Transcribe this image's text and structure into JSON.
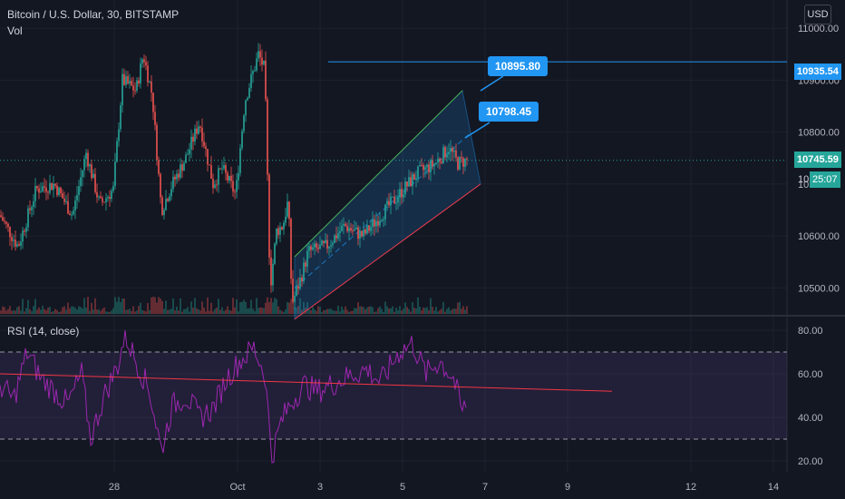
{
  "header": {
    "symbol": "Bitcoin / U.S. Dollar, 30, BITSTAMP",
    "volume_label": "Vol",
    "currency_button": "USD"
  },
  "rsi_header": "RSI (14, close)",
  "price_tags": {
    "hline_price": "10935.54",
    "last_price": "10745.59",
    "last_price_partial": "10",
    "countdown": "25:07"
  },
  "callouts": [
    {
      "text": "10895.80"
    },
    {
      "text": "10798.45"
    }
  ],
  "colors": {
    "background": "#131722",
    "up": "#26a69a",
    "down": "#ef5350",
    "accent_blue": "#2196f3",
    "channel_top": "#4caf50",
    "channel_bottom": "#f23645",
    "rsi_line": "#9c27b0",
    "rsi_trend": "#f23645",
    "grid": "#1e222d"
  },
  "chart_data": [
    {
      "type": "candlestick",
      "title": "Bitcoin / U.S. Dollar, 30, BITSTAMP",
      "y_axis_ticks": [
        "11000.00",
        "10900.00",
        "10800.00",
        "10700.00",
        "10600.00",
        "10500.00"
      ],
      "ylim": [
        10450,
        11030
      ],
      "x_axis_ticks": [
        "28",
        "Oct",
        "3",
        "5",
        "7",
        "9",
        "12",
        "14"
      ],
      "approx_path": [
        [
          0,
          10640
        ],
        [
          20,
          10580
        ],
        [
          40,
          10690
        ],
        [
          60,
          10700
        ],
        [
          80,
          10640
        ],
        [
          95,
          10760
        ],
        [
          110,
          10660
        ],
        [
          125,
          10690
        ],
        [
          135,
          10900
        ],
        [
          150,
          10880
        ],
        [
          158,
          10950
        ],
        [
          168,
          10870
        ],
        [
          178,
          10650
        ],
        [
          190,
          10700
        ],
        [
          205,
          10750
        ],
        [
          220,
          10820
        ],
        [
          235,
          10700
        ],
        [
          245,
          10730
        ],
        [
          260,
          10680
        ],
        [
          270,
          10860
        ],
        [
          285,
          10950
        ],
        [
          292,
          10920
        ],
        [
          298,
          10500
        ],
        [
          305,
          10610
        ],
        [
          312,
          10620
        ],
        [
          318,
          10670
        ],
        [
          322,
          10470
        ],
        [
          332,
          10520
        ],
        [
          340,
          10570
        ],
        [
          360,
          10580
        ],
        [
          380,
          10620
        ],
        [
          400,
          10600
        ],
        [
          420,
          10640
        ],
        [
          440,
          10680
        ],
        [
          460,
          10720
        ],
        [
          480,
          10740
        ],
        [
          495,
          10770
        ],
        [
          505,
          10740
        ],
        [
          515,
          10746
        ]
      ],
      "horizontal_line": 10935.54,
      "last_price": 10745.59,
      "parallel_channel": {
        "upper": [
          [
            325,
            10560
          ],
          [
            510,
            10880
          ]
        ],
        "middle": [
          [
            325,
            10500
          ],
          [
            520,
            10800
          ]
        ],
        "lower": [
          [
            325,
            10440
          ],
          [
            530,
            10700
          ]
        ]
      },
      "callout_values": [
        10895.8,
        10798.45
      ]
    },
    {
      "type": "line",
      "title": "RSI (14, close)",
      "y_axis_ticks": [
        "80.00",
        "60.00",
        "40.00",
        "20.00"
      ],
      "ylim": [
        15,
        85
      ],
      "upper_band": 70,
      "lower_band": 30,
      "approx_path": [
        [
          0,
          55
        ],
        [
          15,
          48
        ],
        [
          30,
          70
        ],
        [
          45,
          58
        ],
        [
          60,
          52
        ],
        [
          75,
          46
        ],
        [
          90,
          60
        ],
        [
          100,
          30
        ],
        [
          115,
          50
        ],
        [
          130,
          64
        ],
        [
          138,
          78
        ],
        [
          150,
          66
        ],
        [
          165,
          52
        ],
        [
          178,
          25
        ],
        [
          190,
          45
        ],
        [
          205,
          50
        ],
        [
          220,
          40
        ],
        [
          235,
          44
        ],
        [
          250,
          58
        ],
        [
          265,
          66
        ],
        [
          280,
          72
        ],
        [
          292,
          60
        ],
        [
          300,
          22
        ],
        [
          310,
          38
        ],
        [
          320,
          46
        ],
        [
          335,
          55
        ],
        [
          350,
          52
        ],
        [
          370,
          56
        ],
        [
          390,
          60
        ],
        [
          405,
          62
        ],
        [
          420,
          56
        ],
        [
          440,
          70
        ],
        [
          455,
          74
        ],
        [
          470,
          60
        ],
        [
          485,
          66
        ],
        [
          500,
          58
        ],
        [
          510,
          42
        ],
        [
          515,
          48
        ]
      ],
      "trend_line": [
        [
          0,
          60
        ],
        [
          675,
          52
        ]
      ]
    }
  ]
}
